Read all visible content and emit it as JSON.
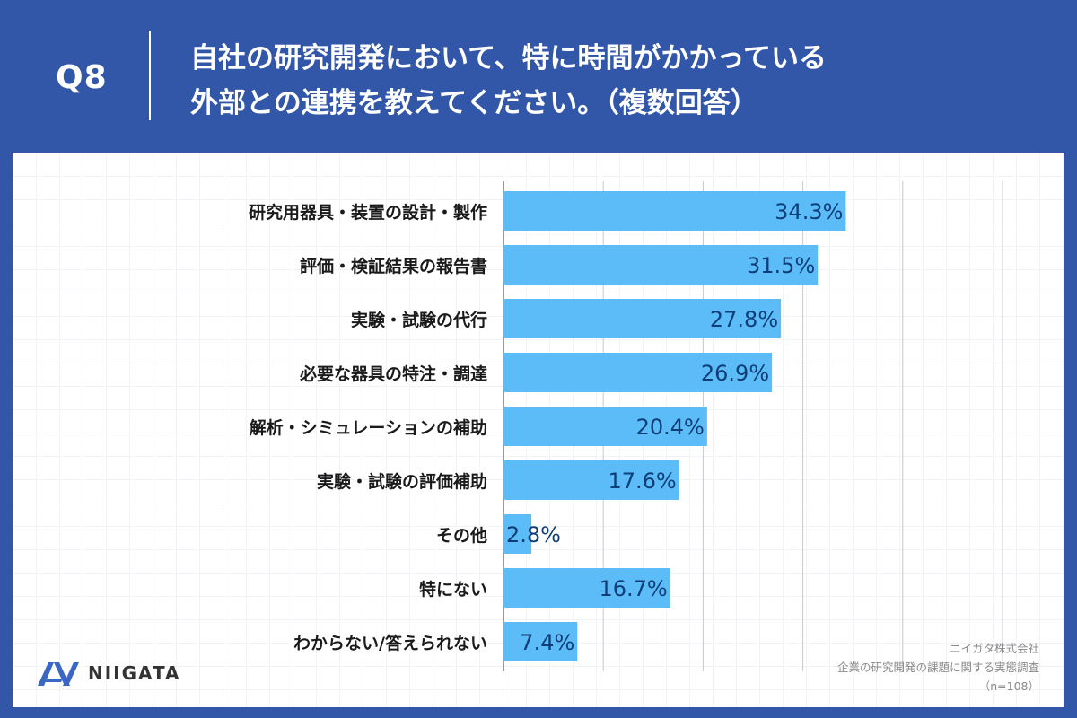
{
  "header": {
    "qnum": "Q8",
    "question_line1": "自社の研究開発において、特に時間がかかっている",
    "question_line2": "外部との連携を教えてください。（複数回答）"
  },
  "colors": {
    "background": "#3256a8",
    "bar": "#5bbcf7",
    "bar_label": "#0f3d78",
    "category_label": "#1a1a1a"
  },
  "chart_data": {
    "type": "bar",
    "orientation": "horizontal",
    "categories": [
      "研究用器具・装置の設計・製作",
      "評価・検証結果の報告書",
      "実験・試験の代行",
      "必要な器具の特注・調達",
      "解析・シミュレーションの補助",
      "実験・試験の評価補助",
      "その他",
      "特にない",
      "わからない/答えられない"
    ],
    "values": [
      34.3,
      31.5,
      27.8,
      26.9,
      20.4,
      17.6,
      2.8,
      16.7,
      7.4
    ],
    "value_labels": [
      "34.3%",
      "31.5%",
      "27.8%",
      "26.9%",
      "20.4%",
      "17.6%",
      "2.8%",
      "16.7%",
      "7.4%"
    ],
    "xlim": [
      0,
      50
    ],
    "grid": true
  },
  "footer": {
    "logo_text": "NIIGATA",
    "company": "ニイガタ株式会社",
    "survey": "企業の研究開発の課題に関する実態調査",
    "sample": "（n=108）"
  }
}
